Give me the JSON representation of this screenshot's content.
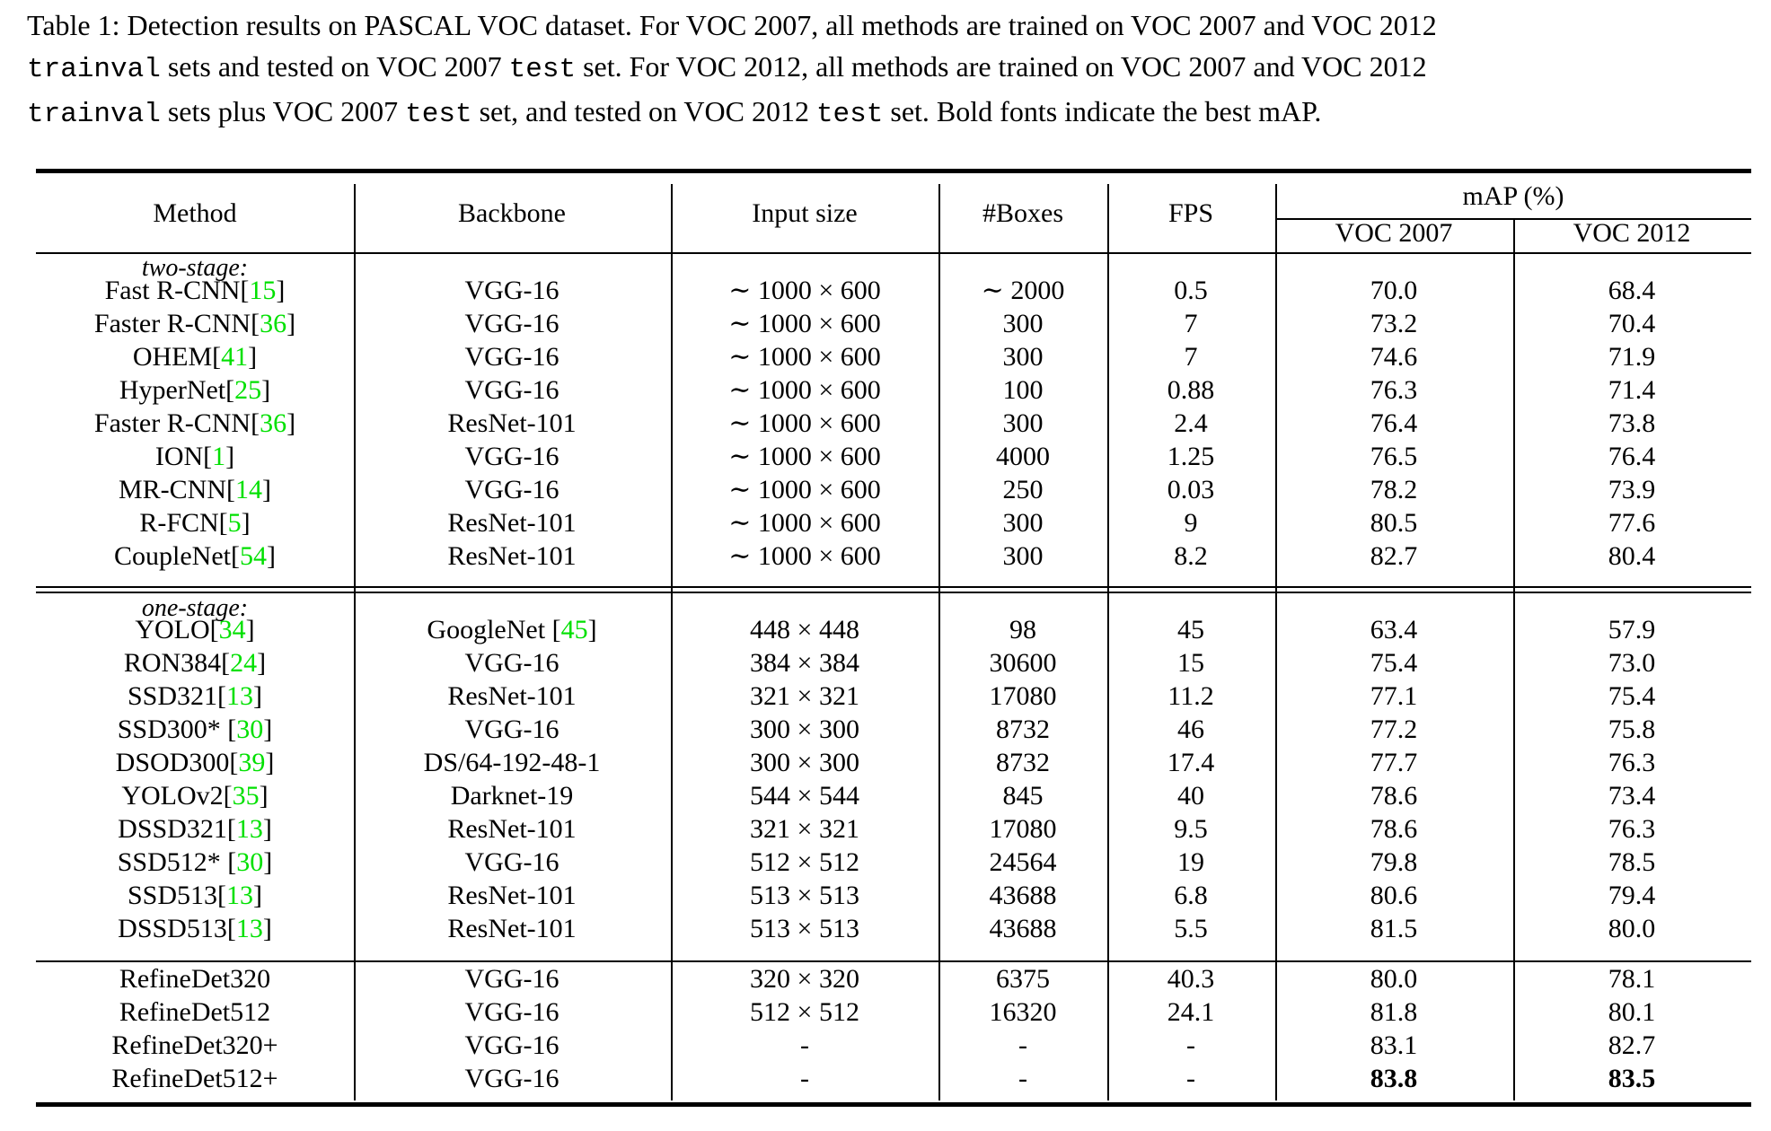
{
  "caption": {
    "prefix": "Table 1: Detection results on PASCAL VOC dataset. For VOC 2007, all methods are trained on VOC 2007 and VOC 2012",
    "line2_code": "trainval",
    "line2_text": " sets and tested on VOC 2007 ",
    "line2_code2": "test",
    "line2_text2": " set. For VOC 2012, all methods are trained on VOC 2007 and VOC 2012",
    "line3_code": "trainval",
    "line3_text": " sets plus VOC 2007 ",
    "line3_code2": "test",
    "line3_text2": " set, and tested on VOC 2012 ",
    "line3_code3": "test",
    "line3_text3": " set. Bold fonts indicate the best mAP."
  },
  "header": {
    "method": "Method",
    "backbone": "Backbone",
    "input_size": "Input size",
    "boxes": "#Boxes",
    "fps": "FPS",
    "map": "mAP (%)",
    "voc2007": "VOC 2007",
    "voc2012": "VOC 2012"
  },
  "groups": {
    "two_stage": "two-stage:",
    "one_stage": "one-stage:"
  },
  "rows": [
    {
      "method": "Fast R-CNN",
      "ref": "15",
      "backbone": "VGG-16",
      "bref": "",
      "input": "∼ 1000 × 600",
      "boxes": "∼ 2000",
      "fps": "0.5",
      "voc2007": "70.0",
      "voc2012": "68.4"
    },
    {
      "method": "Faster R-CNN",
      "ref": "36",
      "backbone": "VGG-16",
      "bref": "",
      "input": "∼ 1000 × 600",
      "boxes": "300",
      "fps": "7",
      "voc2007": "73.2",
      "voc2012": "70.4"
    },
    {
      "method": "OHEM",
      "ref": "41",
      "backbone": "VGG-16",
      "bref": "",
      "input": "∼ 1000 × 600",
      "boxes": "300",
      "fps": "7",
      "voc2007": "74.6",
      "voc2012": "71.9"
    },
    {
      "method": "HyperNet",
      "ref": "25",
      "backbone": "VGG-16",
      "bref": "",
      "input": "∼ 1000 × 600",
      "boxes": "100",
      "fps": "0.88",
      "voc2007": "76.3",
      "voc2012": "71.4"
    },
    {
      "method": "Faster R-CNN",
      "ref": "36",
      "backbone": "ResNet-101",
      "bref": "",
      "input": "∼ 1000 × 600",
      "boxes": "300",
      "fps": "2.4",
      "voc2007": "76.4",
      "voc2012": "73.8"
    },
    {
      "method": "ION",
      "ref": "1",
      "backbone": "VGG-16",
      "bref": "",
      "input": "∼ 1000 × 600",
      "boxes": "4000",
      "fps": "1.25",
      "voc2007": "76.5",
      "voc2012": "76.4"
    },
    {
      "method": "MR-CNN",
      "ref": "14",
      "backbone": "VGG-16",
      "bref": "",
      "input": "∼ 1000 × 600",
      "boxes": "250",
      "fps": "0.03",
      "voc2007": "78.2",
      "voc2012": "73.9"
    },
    {
      "method": "R-FCN",
      "ref": "5",
      "backbone": "ResNet-101",
      "bref": "",
      "input": "∼ 1000 × 600",
      "boxes": "300",
      "fps": "9",
      "voc2007": "80.5",
      "voc2012": "77.6"
    },
    {
      "method": "CoupleNet",
      "ref": "54",
      "backbone": "ResNet-101",
      "bref": "",
      "input": "∼ 1000 × 600",
      "boxes": "300",
      "fps": "8.2",
      "voc2007": "82.7",
      "voc2012": "80.4"
    },
    {
      "method": "YOLO",
      "ref": "34",
      "backbone": "GoogleNet ",
      "bref": "45",
      "input": "448 × 448",
      "boxes": "98",
      "fps": "45",
      "voc2007": "63.4",
      "voc2012": "57.9"
    },
    {
      "method": "RON384",
      "ref": "24",
      "backbone": "VGG-16",
      "bref": "",
      "input": "384 × 384",
      "boxes": "30600",
      "fps": "15",
      "voc2007": "75.4",
      "voc2012": "73.0"
    },
    {
      "method": "SSD321",
      "ref": "13",
      "backbone": "ResNet-101",
      "bref": "",
      "input": "321 × 321",
      "boxes": "17080",
      "fps": "11.2",
      "voc2007": "77.1",
      "voc2012": "75.4"
    },
    {
      "method": "SSD300* ",
      "ref": "30",
      "backbone": "VGG-16",
      "bref": "",
      "input": "300 × 300",
      "boxes": "8732",
      "fps": "46",
      "voc2007": "77.2",
      "voc2012": "75.8"
    },
    {
      "method": "DSOD300",
      "ref": "39",
      "backbone": "DS/64-192-48-1",
      "bref": "",
      "input": "300 × 300",
      "boxes": "8732",
      "fps": "17.4",
      "voc2007": "77.7",
      "voc2012": "76.3"
    },
    {
      "method": "YOLOv2",
      "ref": "35",
      "backbone": "Darknet-19",
      "bref": "",
      "input": "544 × 544",
      "boxes": "845",
      "fps": "40",
      "voc2007": "78.6",
      "voc2012": "73.4"
    },
    {
      "method": "DSSD321",
      "ref": "13",
      "backbone": "ResNet-101",
      "bref": "",
      "input": "321 × 321",
      "boxes": "17080",
      "fps": "9.5",
      "voc2007": "78.6",
      "voc2012": "76.3"
    },
    {
      "method": "SSD512* ",
      "ref": "30",
      "backbone": "VGG-16",
      "bref": "",
      "input": "512 × 512",
      "boxes": "24564",
      "fps": "19",
      "voc2007": "79.8",
      "voc2012": "78.5"
    },
    {
      "method": "SSD513",
      "ref": "13",
      "backbone": "ResNet-101",
      "bref": "",
      "input": "513 × 513",
      "boxes": "43688",
      "fps": "6.8",
      "voc2007": "80.6",
      "voc2012": "79.4"
    },
    {
      "method": "DSSD513",
      "ref": "13",
      "backbone": "ResNet-101",
      "bref": "",
      "input": "513 × 513",
      "boxes": "43688",
      "fps": "5.5",
      "voc2007": "81.5",
      "voc2012": "80.0"
    },
    {
      "method": "RefineDet320",
      "ref": "",
      "backbone": "VGG-16",
      "bref": "",
      "input": "320 × 320",
      "boxes": "6375",
      "fps": "40.3",
      "voc2007": "80.0",
      "voc2012": "78.1"
    },
    {
      "method": "RefineDet512",
      "ref": "",
      "backbone": "VGG-16",
      "bref": "",
      "input": "512 × 512",
      "boxes": "16320",
      "fps": "24.1",
      "voc2007": "81.8",
      "voc2012": "80.1"
    },
    {
      "method": "RefineDet320+",
      "ref": "",
      "backbone": "VGG-16",
      "bref": "",
      "input": "-",
      "boxes": "-",
      "fps": "-",
      "voc2007": "83.1",
      "voc2012": "82.7"
    },
    {
      "method": "RefineDet512+",
      "ref": "",
      "backbone": "VGG-16",
      "bref": "",
      "input": "-",
      "boxes": "-",
      "fps": "-",
      "voc2007": "83.8",
      "voc2012": "83.5",
      "bold": true
    }
  ],
  "colors": {
    "reference": "#00e000"
  }
}
